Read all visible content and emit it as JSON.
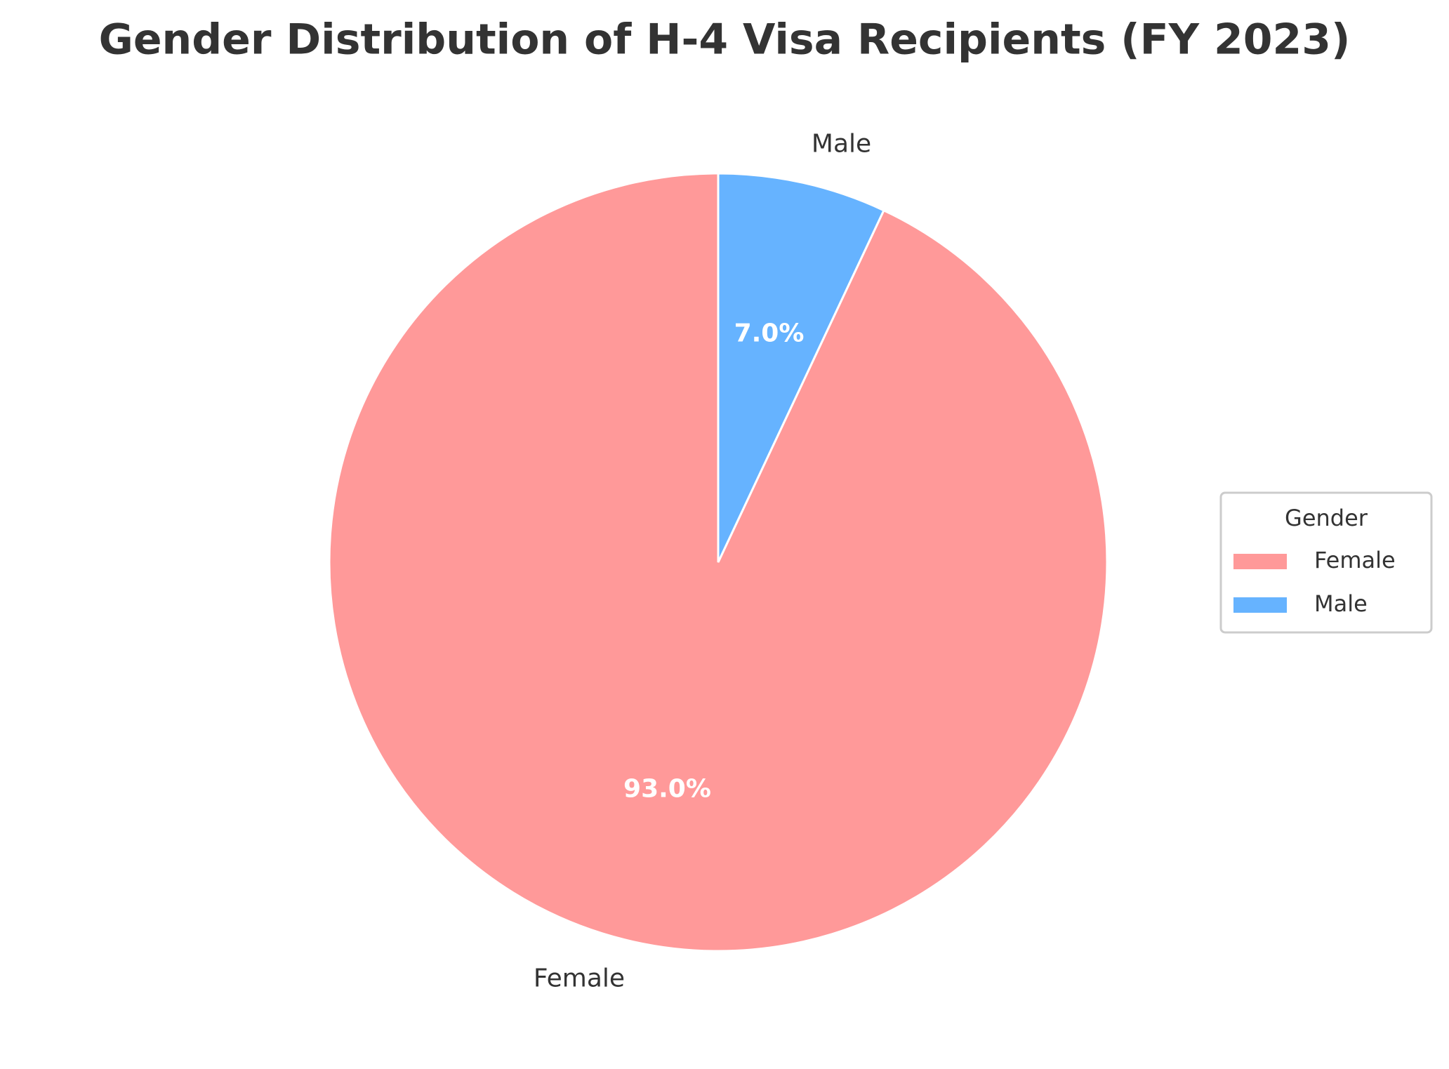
{
  "chart_data": {
    "type": "pie",
    "title": "Gender Distribution of H-4 Visa Recipients (FY 2023)",
    "categories": [
      "Female",
      "Male"
    ],
    "values": [
      93.0,
      7.0
    ],
    "value_labels": [
      "93.0%",
      "7.0%"
    ],
    "colors": [
      "#FF9999",
      "#66B3FF"
    ],
    "legend_title": "Gender",
    "legend": "right"
  }
}
